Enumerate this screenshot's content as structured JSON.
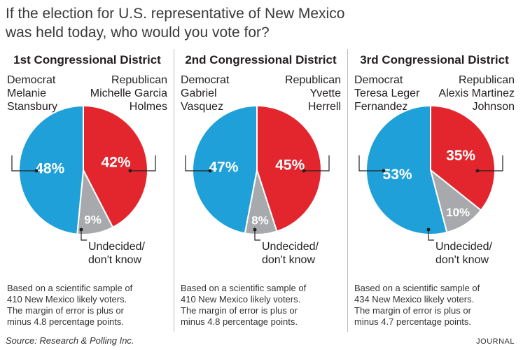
{
  "title_lines": [
    "If the election for U.S. representative of New Mexico",
    "was held today, who would you vote for?"
  ],
  "colors": {
    "democrat": "#1fa0d8",
    "republican": "#e3262e",
    "undecided": "#a7a9ac"
  },
  "chart_data": [
    {
      "type": "pie",
      "title": "1st Congressional District",
      "labels": [
        "Democrat",
        "Republican",
        "Undecided/ don't know"
      ],
      "values": [
        48,
        42,
        9
      ],
      "value_labels": [
        "48%",
        "42%",
        "9%"
      ],
      "democrat": [
        "Democrat",
        "Melanie",
        "Stansbury"
      ],
      "republican": [
        "Republican",
        "Michelle Garcia",
        "Holmes"
      ],
      "undecided": [
        "Undecided/",
        "don't know"
      ],
      "note": [
        "Based on a scientific sample of",
        "410 New Mexico likely voters.",
        "The margin of error is plus or",
        "minus 4.8 percentage points."
      ]
    },
    {
      "type": "pie",
      "title": "2nd Congressional District",
      "labels": [
        "Democrat",
        "Republican",
        "Undecided/ don't know"
      ],
      "values": [
        47,
        45,
        8
      ],
      "value_labels": [
        "47%",
        "45%",
        "8%"
      ],
      "democrat": [
        "Democrat",
        "Gabriel",
        "Vasquez"
      ],
      "republican": [
        "Republican",
        "Yvette",
        "Herrell"
      ],
      "undecided": [
        "Undecided/",
        "don't know"
      ],
      "note": [
        "Based on a scientific sample of",
        "410 New Mexico likely voters.",
        "The margin of error is plus or",
        "minus 4.8 percentage points."
      ]
    },
    {
      "type": "pie",
      "title": "3rd Congressional District",
      "labels": [
        "Democrat",
        "Republican",
        "Undecided/ don't know"
      ],
      "values": [
        53,
        35,
        10
      ],
      "value_labels": [
        "53%",
        "35%",
        "10%"
      ],
      "democrat": [
        "Democrat",
        "Teresa Leger",
        "Fernandez"
      ],
      "republican": [
        "Republican",
        "Alexis Martinez",
        "Johnson"
      ],
      "undecided": [
        "Undecided/",
        "don't know"
      ],
      "note": [
        "Based on a scientific sample of",
        "434 New Mexico likely voters.",
        "The margin of error is plus or",
        "minus 4.7 percentage points."
      ]
    }
  ],
  "source": "Source: Research & Polling Inc.",
  "credit": "JOURNAL"
}
